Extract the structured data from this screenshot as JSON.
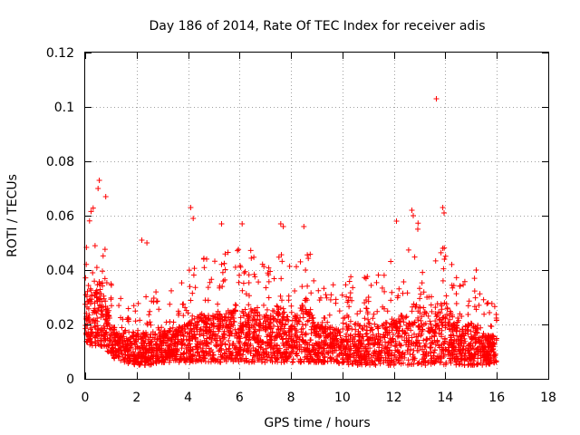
{
  "chart_data": {
    "type": "scatter",
    "title": "Day 186 of 2014, Rate Of TEC Index for receiver adis",
    "xlabel": "GPS time / hours",
    "ylabel": "ROTI / TECUs",
    "xlim": [
      0,
      18
    ],
    "ylim": [
      0,
      0.12
    ],
    "x_ticks": [
      0,
      2,
      4,
      6,
      8,
      10,
      12,
      14,
      16,
      18
    ],
    "x_tick_labels": [
      "0",
      "2",
      "4",
      "6",
      "8",
      "10",
      "12",
      "14",
      "16",
      "18"
    ],
    "y_ticks": [
      0,
      0.02,
      0.04,
      0.06,
      0.08,
      0.1,
      0.12
    ],
    "y_tick_labels": [
      "0",
      "0.02",
      "0.04",
      "0.06",
      "0.08",
      "0.1",
      "0.12"
    ],
    "grid": true,
    "marker": "+",
    "marker_color": "#ff0000",
    "series": [
      {
        "name": "ROTI",
        "envelope_x": [
          0,
          0.25,
          0.5,
          0.75,
          1.0,
          1.5,
          2.0,
          2.5,
          3.0,
          3.5,
          4.0,
          4.5,
          5.0,
          5.5,
          6.0,
          6.5,
          7.0,
          7.5,
          8.0,
          8.5,
          9.0,
          9.5,
          10.0,
          10.5,
          11.0,
          11.5,
          12.0,
          12.5,
          13.0,
          13.5,
          14.0,
          14.5,
          15.0,
          15.5,
          16.0
        ],
        "envelope_low": [
          0.012,
          0.012,
          0.012,
          0.012,
          0.008,
          0.006,
          0.005,
          0.005,
          0.006,
          0.006,
          0.006,
          0.006,
          0.006,
          0.006,
          0.006,
          0.006,
          0.006,
          0.006,
          0.006,
          0.006,
          0.006,
          0.006,
          0.005,
          0.005,
          0.005,
          0.005,
          0.005,
          0.005,
          0.005,
          0.005,
          0.005,
          0.005,
          0.005,
          0.005,
          0.006
        ],
        "envelope_high": [
          0.06,
          0.065,
          0.07,
          0.055,
          0.035,
          0.03,
          0.03,
          0.032,
          0.032,
          0.033,
          0.04,
          0.045,
          0.045,
          0.05,
          0.05,
          0.05,
          0.045,
          0.055,
          0.04,
          0.055,
          0.038,
          0.035,
          0.035,
          0.04,
          0.04,
          0.038,
          0.045,
          0.048,
          0.06,
          0.04,
          0.06,
          0.035,
          0.04,
          0.03,
          0.028
        ],
        "outliers": [
          {
            "x": 0.5,
            "y": 0.07
          },
          {
            "x": 0.55,
            "y": 0.073
          },
          {
            "x": 0.8,
            "y": 0.067
          },
          {
            "x": 2.4,
            "y": 0.05
          },
          {
            "x": 2.2,
            "y": 0.051
          },
          {
            "x": 4.1,
            "y": 0.063
          },
          {
            "x": 4.2,
            "y": 0.059
          },
          {
            "x": 5.3,
            "y": 0.057
          },
          {
            "x": 6.1,
            "y": 0.057
          },
          {
            "x": 7.6,
            "y": 0.057
          },
          {
            "x": 7.7,
            "y": 0.056
          },
          {
            "x": 8.5,
            "y": 0.056
          },
          {
            "x": 12.1,
            "y": 0.058
          },
          {
            "x": 12.7,
            "y": 0.062
          },
          {
            "x": 12.75,
            "y": 0.06
          },
          {
            "x": 13.9,
            "y": 0.063
          },
          {
            "x": 13.95,
            "y": 0.061
          },
          {
            "x": 13.65,
            "y": 0.103
          },
          {
            "x": 13.9,
            "y": 0.048
          },
          {
            "x": 15.2,
            "y": 0.04
          }
        ]
      }
    ]
  }
}
